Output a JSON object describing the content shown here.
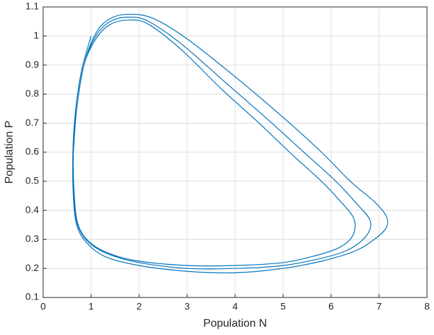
{
  "chart_data": {
    "type": "line",
    "xlabel": "Population N",
    "ylabel": "Population P",
    "xlim": [
      0,
      8
    ],
    "xticks": [
      0,
      1,
      2,
      3,
      4,
      5,
      6,
      7,
      8
    ],
    "ylim": [
      0.1,
      1.1
    ],
    "yticks": [
      0.1,
      0.2,
      0.3,
      0.4,
      0.5,
      0.6,
      0.7,
      0.8,
      0.9,
      1,
      1.1
    ],
    "grid": true,
    "series": [
      {
        "color": "#0072bd",
        "x": [
          1,
          0.8,
          0.68,
          0.62,
          0.63,
          0.7,
          0.9,
          1.3,
          2,
          3,
          4,
          5,
          5.8,
          6.5,
          6.9,
          7.15,
          7.15,
          6.9,
          6.4,
          5.8,
          5,
          4,
          3,
          2.3,
          1.8,
          1.4,
          1.1,
          0.85,
          0.7,
          0.62,
          0.64,
          0.72,
          0.95,
          1.35,
          2,
          3,
          4,
          5,
          5.8,
          6.3,
          6.6,
          6.8,
          6.8,
          6.55,
          6.1,
          5.5,
          4.7,
          3.8,
          2.9,
          2.2,
          1.8,
          1.4,
          1.1,
          0.85,
          0.7,
          0.63,
          0.65,
          0.73,
          0.97,
          1.4,
          2,
          3,
          4,
          5,
          5.7,
          6.15,
          6.4,
          6.5,
          6.45,
          6.2,
          5.8,
          5.2,
          4.5,
          3.7,
          2.9,
          2.2,
          1.8,
          1.4,
          1.1,
          0.85,
          0.7,
          0.63
        ],
        "values": [
          1,
          0.88,
          0.75,
          0.6,
          0.45,
          0.35,
          0.29,
          0.24,
          0.21,
          0.19,
          0.185,
          0.2,
          0.225,
          0.26,
          0.3,
          0.34,
          0.38,
          0.43,
          0.5,
          0.6,
          0.72,
          0.86,
          0.99,
          1.06,
          1.075,
          1.06,
          1.01,
          0.9,
          0.75,
          0.6,
          0.45,
          0.35,
          0.29,
          0.25,
          0.22,
          0.2,
          0.2,
          0.21,
          0.235,
          0.26,
          0.29,
          0.33,
          0.37,
          0.42,
          0.5,
          0.59,
          0.71,
          0.84,
          0.97,
          1.05,
          1.065,
          1.05,
          1.0,
          0.9,
          0.75,
          0.6,
          0.45,
          0.35,
          0.29,
          0.25,
          0.225,
          0.21,
          0.21,
          0.22,
          0.245,
          0.27,
          0.3,
          0.34,
          0.38,
          0.43,
          0.5,
          0.59,
          0.7,
          0.82,
          0.95,
          1.04,
          1.055,
          1.04,
          0.99,
          0.9,
          0.75,
          0.6
        ]
      }
    ]
  }
}
